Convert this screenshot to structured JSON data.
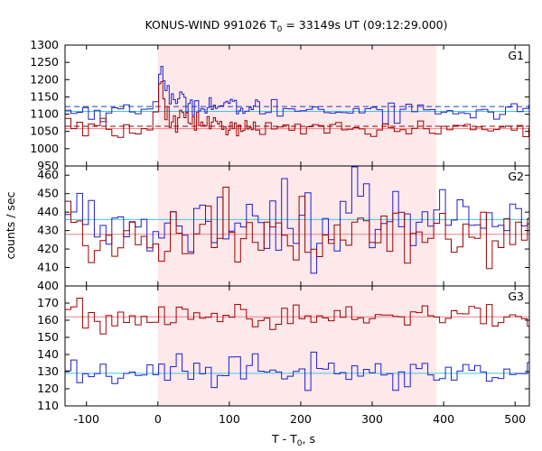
{
  "chart_data": {
    "type": "line",
    "title": "KONUS-WIND 991026 T",
    "title_sub": "0",
    "title_rest": " = 33149s UT (09:12:29.000)",
    "xlabel": "T - T",
    "xlabel_sub": "0",
    "xlabel_rest": ", s",
    "ylabel": "counts / sec",
    "xlim": [
      -130,
      520
    ],
    "x_ticks": [
      -100,
      0,
      100,
      200,
      300,
      400,
      500
    ],
    "shaded_interval": [
      0,
      390
    ],
    "colors": {
      "shade": "#fde8ea",
      "red": "#a00000",
      "blue": "#1f1fd0",
      "red_bg": "#f08080",
      "blue_bg": "#40c8e0",
      "red_dash": "#a00000",
      "blue_dash": "#2040b0"
    },
    "panels": [
      {
        "label": "G1",
        "ylim": [
          950,
          1300
        ],
        "y_ticks": [
          950,
          1000,
          1050,
          1100,
          1150,
          1200,
          1250,
          1300
        ],
        "bin_width": 2.944,
        "red_background": 1058,
        "blue_background": 1108,
        "red_dashed": 1065,
        "blue_dashed": 1122,
        "blue_pulse": [
          [
            -8,
            1108
          ],
          [
            0,
            1180
          ],
          [
            3,
            1240
          ],
          [
            5,
            1250
          ],
          [
            8,
            1215
          ],
          [
            12,
            1170
          ],
          [
            20,
            1140
          ],
          [
            40,
            1135
          ],
          [
            60,
            1128
          ],
          [
            80,
            1125
          ],
          [
            120,
            1118
          ],
          [
            390,
            1110
          ]
        ],
        "red_pulse": [
          [
            -8,
            1058
          ],
          [
            0,
            1110
          ],
          [
            3,
            1170
          ],
          [
            5,
            1210
          ],
          [
            8,
            1150
          ],
          [
            12,
            1110
          ],
          [
            20,
            1088
          ],
          [
            40,
            1080
          ],
          [
            60,
            1074
          ],
          [
            80,
            1070
          ],
          [
            120,
            1064
          ],
          [
            390,
            1058
          ]
        ],
        "blue_noise": 14,
        "red_noise": 14
      },
      {
        "label": "G2",
        "ylim": [
          400,
          465
        ],
        "y_ticks": [
          400,
          410,
          420,
          430,
          440,
          450,
          460
        ],
        "bin_width": 8.192,
        "red_background": 428,
        "blue_background": 436,
        "blue_pulse": [
          [
            -130,
            436
          ],
          [
            520,
            436
          ]
        ],
        "red_pulse": [
          [
            -130,
            428
          ],
          [
            520,
            428
          ]
        ],
        "blue_noise": 10,
        "red_noise": 9
      },
      {
        "label": "G3",
        "ylim": [
          110,
          180
        ],
        "y_ticks": [
          110,
          120,
          130,
          140,
          150,
          160,
          170
        ],
        "bin_width": 8.192,
        "red_background": 162,
        "blue_background": 129,
        "blue_pulse": [
          [
            -130,
            129
          ],
          [
            520,
            129
          ]
        ],
        "red_pulse": [
          [
            -130,
            162
          ],
          [
            520,
            162
          ]
        ],
        "blue_noise": 4.5,
        "red_noise": 4.5
      }
    ]
  }
}
